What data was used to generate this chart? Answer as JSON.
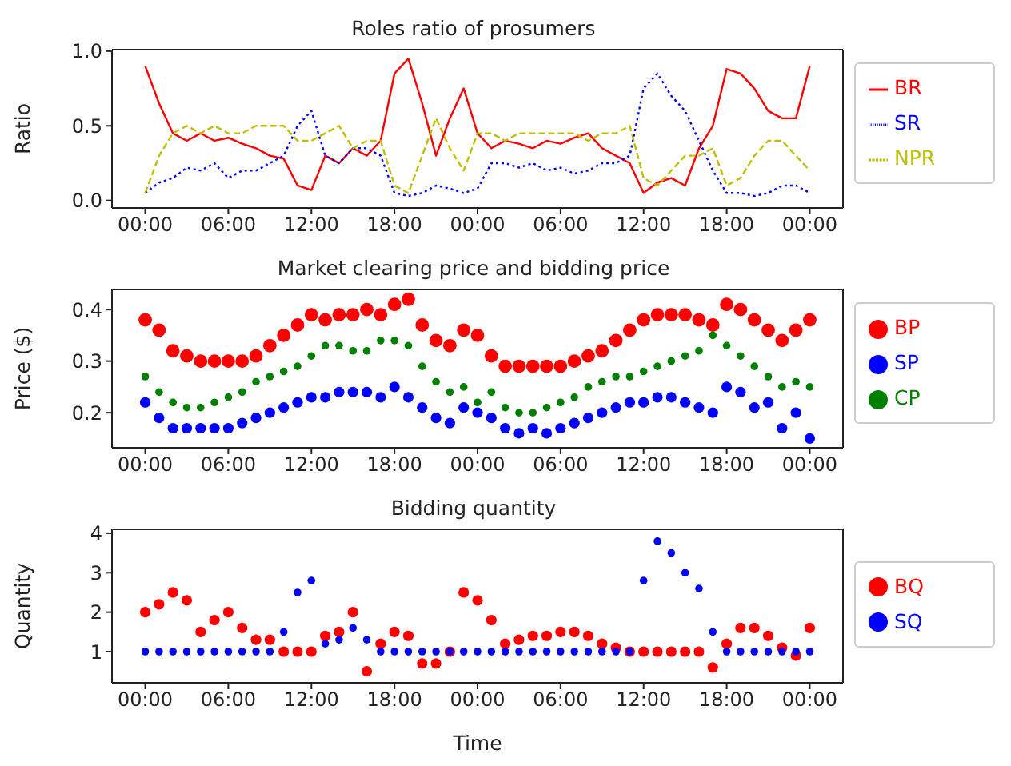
{
  "chart_data": [
    {
      "type": "line",
      "title": "Roles ratio of prosumers",
      "ylabel": "Ratio",
      "legend": "right",
      "marker": "none",
      "x": [
        "--01-02T00:00",
        "--01-02T01:00",
        "--01-02T02:00",
        "--01-02T03:00",
        "--01-02T04:00",
        "--01-02T05:00",
        "--01-02T06:00",
        "--01-02T07:00",
        "--01-02T08:00",
        "--01-02T09:00",
        "--01-02T10:00",
        "--01-02T11:00",
        "--01-02T12:00",
        "--01-02T13:00",
        "--01-02T14:00",
        "--01-02T15:00",
        "--01-02T16:00",
        "--01-02T17:00",
        "--01-02T18:00",
        "--01-02T19:00",
        "--01-02T20:00",
        "--01-02T21:00",
        "--01-02T22:00",
        "--01-02T23:00",
        "--01-03T00:00",
        "--01-03T01:00",
        "--01-03T02:00",
        "--01-03T03:00",
        "--01-03T04:00",
        "--01-03T05:00",
        "--01-03T06:00",
        "--01-03T07:00",
        "--01-03T08:00",
        "--01-03T09:00",
        "--01-03T10:00",
        "--01-03T11:00",
        "--01-03T12:00",
        "--01-03T13:00",
        "--01-03T14:00",
        "--01-03T15:00",
        "--01-03T16:00",
        "--01-03T17:00",
        "--01-03T18:00",
        "--01-03T19:00",
        "--01-03T20:00",
        "--01-03T21:00",
        "--01-03T22:00",
        "--01-03T23:00",
        "--01-04T00:00"
      ],
      "xlim": [
        "--01-01T21:36",
        "--01-04T02:24"
      ],
      "xticks": [
        {
          "value": "--01-02T00:00",
          "label": "00:00"
        },
        {
          "value": "--01-02T06:00",
          "label": "06:00"
        },
        {
          "value": "--01-02T12:00",
          "label": "12:00"
        },
        {
          "value": "--01-02T18:00",
          "label": "18:00"
        },
        {
          "value": "--01-03T00:00",
          "label": "00:00"
        },
        {
          "value": "--01-03T06:00",
          "label": "06:00"
        },
        {
          "value": "--01-03T12:00",
          "label": "12:00"
        },
        {
          "value": "--01-03T18:00",
          "label": "18:00"
        },
        {
          "value": "--01-04T00:00",
          "label": "00:00"
        }
      ],
      "ylim": [
        -0.05,
        1.01
      ],
      "yticks": [
        {
          "value": 0,
          "label": "0.0"
        },
        {
          "value": 0.5,
          "label": "0.5"
        },
        {
          "value": 1,
          "label": "1.0"
        }
      ],
      "series": [
        {
          "name": "BR",
          "color": "#ff0000",
          "line_style": "solid",
          "values": [
            0.9,
            0.65,
            0.45,
            0.4,
            0.45,
            0.4,
            0.42,
            0.38,
            0.35,
            0.3,
            0.28,
            0.1,
            0.07,
            0.3,
            0.25,
            0.35,
            0.3,
            0.4,
            0.85,
            0.95,
            0.65,
            0.3,
            0.55,
            0.75,
            0.45,
            0.35,
            0.4,
            0.38,
            0.35,
            0.4,
            0.38,
            0.42,
            0.45,
            0.35,
            0.3,
            0.25,
            0.05,
            0.12,
            0.15,
            0.1,
            0.35,
            0.5,
            0.88,
            0.85,
            0.75,
            0.6,
            0.55,
            0.55,
            0.9
          ]
        },
        {
          "name": "SR",
          "color": "#0000ff",
          "line_style": "dotted",
          "values": [
            0.05,
            0.12,
            0.15,
            0.22,
            0.2,
            0.25,
            0.15,
            0.2,
            0.2,
            0.25,
            0.3,
            0.5,
            0.6,
            0.3,
            0.25,
            0.35,
            0.35,
            0.3,
            0.05,
            0.03,
            0.05,
            0.1,
            0.08,
            0.05,
            0.08,
            0.25,
            0.25,
            0.22,
            0.25,
            0.2,
            0.22,
            0.18,
            0.2,
            0.25,
            0.25,
            0.3,
            0.75,
            0.85,
            0.7,
            0.6,
            0.4,
            0.2,
            0.05,
            0.05,
            0.03,
            0.05,
            0.1,
            0.1,
            0.05
          ]
        },
        {
          "name": "NPR",
          "color": "#bfbf00",
          "line_style": "dashed",
          "values": [
            0.05,
            0.3,
            0.45,
            0.5,
            0.45,
            0.5,
            0.45,
            0.45,
            0.5,
            0.5,
            0.5,
            0.4,
            0.4,
            0.45,
            0.5,
            0.35,
            0.4,
            0.4,
            0.1,
            0.05,
            0.3,
            0.55,
            0.35,
            0.2,
            0.45,
            0.45,
            0.4,
            0.45,
            0.45,
            0.45,
            0.45,
            0.45,
            0.4,
            0.45,
            0.45,
            0.5,
            0.15,
            0.1,
            0.2,
            0.3,
            0.3,
            0.35,
            0.1,
            0.15,
            0.3,
            0.4,
            0.4,
            0.3,
            0.2
          ]
        }
      ]
    },
    {
      "type": "scatter",
      "title": "Market clearing price and bidding price",
      "ylabel": "Price ($)",
      "legend": "right",
      "marker": "circle",
      "x": [
        "--01-02T00:00",
        "--01-02T01:00",
        "--01-02T02:00",
        "--01-02T03:00",
        "--01-02T04:00",
        "--01-02T05:00",
        "--01-02T06:00",
        "--01-02T07:00",
        "--01-02T08:00",
        "--01-02T09:00",
        "--01-02T10:00",
        "--01-02T11:00",
        "--01-02T12:00",
        "--01-02T13:00",
        "--01-02T14:00",
        "--01-02T15:00",
        "--01-02T16:00",
        "--01-02T17:00",
        "--01-02T18:00",
        "--01-02T19:00",
        "--01-02T20:00",
        "--01-02T21:00",
        "--01-02T22:00",
        "--01-02T23:00",
        "--01-03T00:00",
        "--01-03T01:00",
        "--01-03T02:00",
        "--01-03T03:00",
        "--01-03T04:00",
        "--01-03T05:00",
        "--01-03T06:00",
        "--01-03T07:00",
        "--01-03T08:00",
        "--01-03T09:00",
        "--01-03T10:00",
        "--01-03T11:00",
        "--01-03T12:00",
        "--01-03T13:00",
        "--01-03T14:00",
        "--01-03T15:00",
        "--01-03T16:00",
        "--01-03T17:00",
        "--01-03T18:00",
        "--01-03T19:00",
        "--01-03T20:00",
        "--01-03T21:00",
        "--01-03T22:00",
        "--01-03T23:00",
        "--01-04T00:00"
      ],
      "xlim": [
        "--01-01T21:36",
        "--01-04T02:24"
      ],
      "xticks": [
        {
          "value": "--01-02T00:00",
          "label": "00:00"
        },
        {
          "value": "--01-02T06:00",
          "label": "06:00"
        },
        {
          "value": "--01-02T12:00",
          "label": "12:00"
        },
        {
          "value": "--01-02T18:00",
          "label": "18:00"
        },
        {
          "value": "--01-03T00:00",
          "label": "00:00"
        },
        {
          "value": "--01-03T06:00",
          "label": "06:00"
        },
        {
          "value": "--01-03T12:00",
          "label": "12:00"
        },
        {
          "value": "--01-03T18:00",
          "label": "18:00"
        },
        {
          "value": "--01-04T00:00",
          "label": "00:00"
        }
      ],
      "ylim": [
        0.132,
        0.439
      ],
      "yticks": [
        0.2,
        0.3,
        0.4
      ],
      "series": [
        {
          "name": "BP",
          "color": "#ff0000",
          "values": [
            0.38,
            0.36,
            0.32,
            0.31,
            0.3,
            0.3,
            0.3,
            0.3,
            0.31,
            0.33,
            0.35,
            0.37,
            0.39,
            0.38,
            0.39,
            0.39,
            0.4,
            0.39,
            0.41,
            0.42,
            0.37,
            0.34,
            0.33,
            0.36,
            0.35,
            0.31,
            0.29,
            0.29,
            0.29,
            0.29,
            0.29,
            0.3,
            0.31,
            0.32,
            0.34,
            0.36,
            0.38,
            0.39,
            0.39,
            0.39,
            0.38,
            0.37,
            0.41,
            0.4,
            0.38,
            0.36,
            0.34,
            0.36,
            0.38
          ]
        },
        {
          "name": "SP",
          "color": "#0000ff",
          "values": [
            0.22,
            0.19,
            0.17,
            0.17,
            0.17,
            0.17,
            0.17,
            0.18,
            0.19,
            0.2,
            0.21,
            0.22,
            0.23,
            0.23,
            0.24,
            0.24,
            0.24,
            0.23,
            0.25,
            0.23,
            0.21,
            0.19,
            0.18,
            0.21,
            0.2,
            0.19,
            0.17,
            0.16,
            0.17,
            0.16,
            0.17,
            0.18,
            0.19,
            0.2,
            0.21,
            0.22,
            0.22,
            0.23,
            0.23,
            0.22,
            0.21,
            0.2,
            0.25,
            0.24,
            0.21,
            0.22,
            0.17,
            0.2,
            0.15
          ]
        },
        {
          "name": "CP",
          "color": "#008000",
          "values": [
            0.27,
            0.24,
            0.22,
            0.21,
            0.21,
            0.22,
            0.23,
            0.24,
            0.26,
            0.27,
            0.28,
            0.29,
            0.31,
            0.33,
            0.33,
            0.32,
            0.32,
            0.34,
            0.34,
            0.33,
            0.29,
            0.26,
            0.24,
            0.25,
            0.22,
            0.24,
            0.21,
            0.2,
            0.2,
            0.21,
            0.22,
            0.23,
            0.25,
            0.26,
            0.27,
            0.27,
            0.28,
            0.29,
            0.3,
            0.31,
            0.32,
            0.35,
            0.33,
            0.31,
            0.29,
            0.27,
            0.25,
            0.26,
            0.25
          ]
        }
      ]
    },
    {
      "type": "scatter",
      "title": "Bidding quantity",
      "xlabel": "Time",
      "ylabel": "Quantity",
      "legend": "right",
      "marker": "circle",
      "x": [
        "--01-02T00:00",
        "--01-02T01:00",
        "--01-02T02:00",
        "--01-02T03:00",
        "--01-02T04:00",
        "--01-02T05:00",
        "--01-02T06:00",
        "--01-02T07:00",
        "--01-02T08:00",
        "--01-02T09:00",
        "--01-02T10:00",
        "--01-02T11:00",
        "--01-02T12:00",
        "--01-02T13:00",
        "--01-02T14:00",
        "--01-02T15:00",
        "--01-02T16:00",
        "--01-02T17:00",
        "--01-02T18:00",
        "--01-02T19:00",
        "--01-02T20:00",
        "--01-02T21:00",
        "--01-02T22:00",
        "--01-02T23:00",
        "--01-03T00:00",
        "--01-03T01:00",
        "--01-03T02:00",
        "--01-03T03:00",
        "--01-03T04:00",
        "--01-03T05:00",
        "--01-03T06:00",
        "--01-03T07:00",
        "--01-03T08:00",
        "--01-03T09:00",
        "--01-03T10:00",
        "--01-03T11:00",
        "--01-03T12:00",
        "--01-03T13:00",
        "--01-03T14:00",
        "--01-03T15:00",
        "--01-03T16:00",
        "--01-03T17:00",
        "--01-03T18:00",
        "--01-03T19:00",
        "--01-03T20:00",
        "--01-03T21:00",
        "--01-03T22:00",
        "--01-03T23:00",
        "--01-04T00:00"
      ],
      "xlim": [
        "--01-01T21:36",
        "--01-04T02:24"
      ],
      "xticks": [
        {
          "value": "--01-02T00:00",
          "label": "00:00"
        },
        {
          "value": "--01-02T06:00",
          "label": "06:00"
        },
        {
          "value": "--01-02T12:00",
          "label": "12:00"
        },
        {
          "value": "--01-02T18:00",
          "label": "18:00"
        },
        {
          "value": "--01-03T00:00",
          "label": "00:00"
        },
        {
          "value": "--01-03T06:00",
          "label": "06:00"
        },
        {
          "value": "--01-03T12:00",
          "label": "12:00"
        },
        {
          "value": "--01-03T18:00",
          "label": "18:00"
        },
        {
          "value": "--01-04T00:00",
          "label": "00:00"
        }
      ],
      "ylim": [
        0.21,
        4.1
      ],
      "yticks": [
        1,
        2,
        3,
        4
      ],
      "series": [
        {
          "name": "BQ",
          "color": "#ff0000",
          "values": [
            2.0,
            2.2,
            2.5,
            2.3,
            1.5,
            1.8,
            2.0,
            1.6,
            1.3,
            1.3,
            1.0,
            1.0,
            1.0,
            1.4,
            1.5,
            2.0,
            0.5,
            1.2,
            1.5,
            1.4,
            0.7,
            0.7,
            1.0,
            2.5,
            2.3,
            1.8,
            1.2,
            1.3,
            1.4,
            1.4,
            1.5,
            1.5,
            1.4,
            1.2,
            1.1,
            1.0,
            1.0,
            1.0,
            1.0,
            1.0,
            1.0,
            0.6,
            1.2,
            1.6,
            1.6,
            1.4,
            1.1,
            0.9,
            1.6
          ]
        },
        {
          "name": "SQ",
          "color": "#0000ff",
          "values": [
            1,
            1,
            1,
            1,
            1,
            1,
            1,
            1,
            1,
            1,
            1.5,
            2.5,
            2.8,
            1.2,
            1.3,
            1.6,
            1.3,
            1,
            1,
            1,
            1,
            1,
            1,
            1,
            1,
            1,
            1,
            1,
            1,
            1,
            1,
            1,
            1,
            1,
            1,
            1,
            2.8,
            3.8,
            3.5,
            3.0,
            2.6,
            1.5,
            1,
            1,
            1,
            1,
            1,
            1,
            1
          ]
        }
      ]
    }
  ]
}
